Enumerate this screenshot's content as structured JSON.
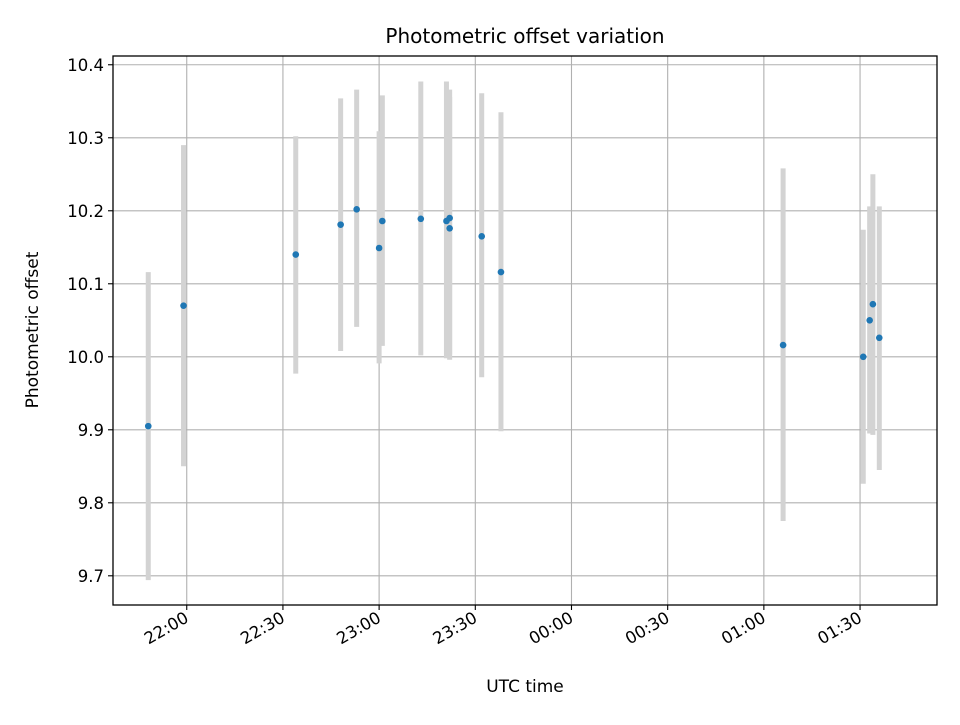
{
  "chart_data": {
    "type": "scatter",
    "title": "Photometric offset variation",
    "xlabel": "UTC time",
    "ylabel": "Photometric offset",
    "x_axis": {
      "type": "time",
      "tick_labels": [
        "22:00",
        "22:30",
        "23:00",
        "23:30",
        "00:00",
        "00:30",
        "01:00",
        "01:30"
      ],
      "range": [
        "21:37",
        "01:54"
      ]
    },
    "ylim": [
      9.66,
      10.412
    ],
    "y_ticks": [
      "9.7",
      "9.8",
      "9.9",
      "10.0",
      "10.1",
      "10.2",
      "10.3",
      "10.4"
    ],
    "grid": true,
    "colors": {
      "points": "#1f77b4",
      "error_bars": "#d3d3d3",
      "grid": "#b0b0b0"
    },
    "series": [
      {
        "x": [
          "21:48",
          "21:59",
          "22:34",
          "22:48",
          "22:53",
          "23:00",
          "23:01",
          "23:13",
          "23:21",
          "23:22",
          "23:22",
          "23:32",
          "23:38",
          "01:06",
          "01:31",
          "01:33",
          "01:34",
          "01:36"
        ],
        "y": [
          9.905,
          10.07,
          10.14,
          10.181,
          10.202,
          10.149,
          10.186,
          10.189,
          10.186,
          10.19,
          10.176,
          10.165,
          10.116,
          10.016,
          10.0,
          10.05,
          10.072,
          10.026
        ],
        "y_low": [
          9.694,
          9.85,
          9.977,
          10.008,
          10.041,
          9.991,
          10.015,
          10.002,
          9.998,
          10.003,
          9.996,
          9.972,
          9.898,
          9.775,
          9.826,
          9.895,
          9.893,
          9.845
        ],
        "y_high": [
          10.116,
          10.29,
          10.302,
          10.354,
          10.366,
          10.309,
          10.358,
          10.377,
          10.377,
          10.366,
          10.356,
          10.361,
          10.335,
          10.258,
          10.174,
          10.206,
          10.25,
          10.206
        ]
      }
    ]
  }
}
